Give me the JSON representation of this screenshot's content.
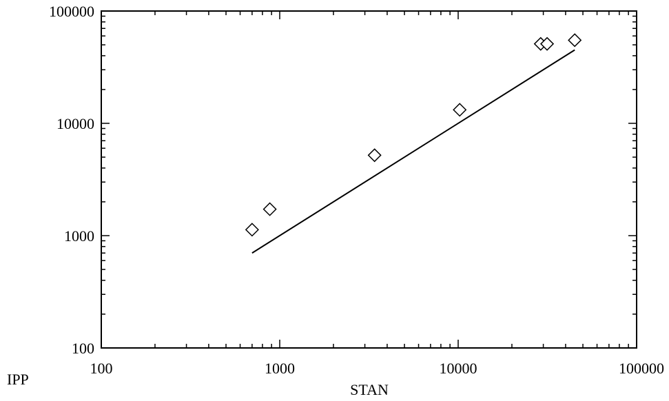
{
  "chart_data": {
    "type": "scatter",
    "title": "",
    "xlabel": "STAN",
    "ylabel": "IPP",
    "xscale": "log",
    "yscale": "log",
    "xlim": [
      100,
      100000
    ],
    "ylim": [
      100,
      100000
    ],
    "grid": false,
    "x_tick_labels": [
      "100",
      "1000",
      "10000",
      "100000"
    ],
    "y_tick_labels": [
      "100",
      "1000",
      "10000",
      "100000"
    ],
    "series": [
      {
        "type": "scatter",
        "marker": "diamond",
        "x": [
          700,
          880,
          3400,
          10200,
          29000,
          31500,
          45000
        ],
        "y": [
          1130,
          1720,
          5200,
          13200,
          51000,
          51000,
          55000
        ]
      },
      {
        "type": "line",
        "x": [
          700,
          45000
        ],
        "y": [
          700,
          45000
        ]
      }
    ],
    "colors": {
      "ink": "#000000",
      "background": "#ffffff"
    }
  }
}
